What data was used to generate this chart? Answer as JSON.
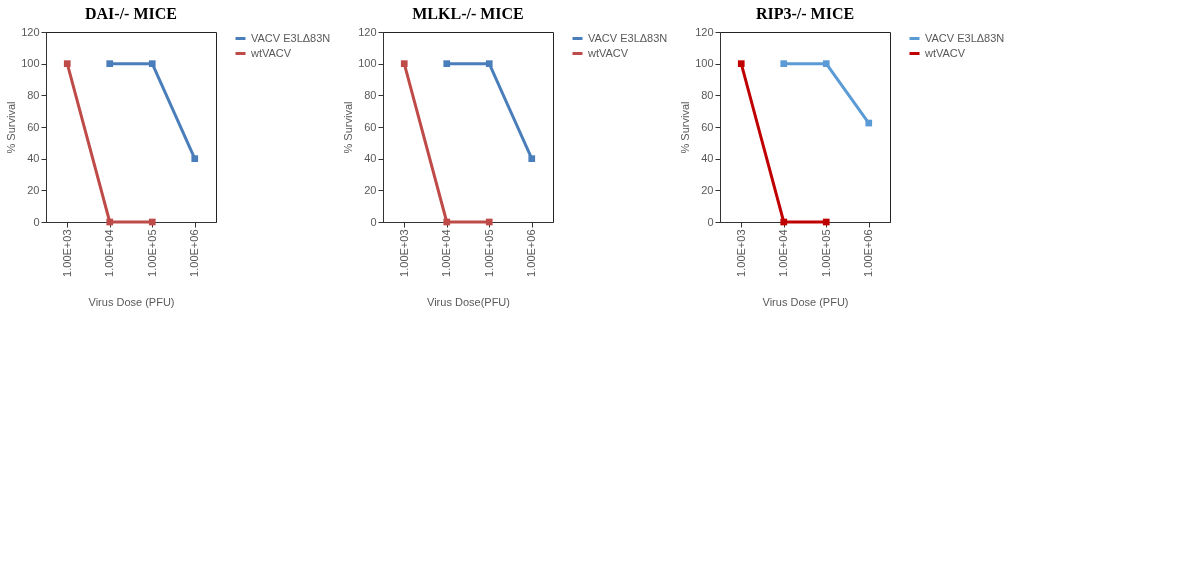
{
  "chart_data": [
    {
      "type": "line",
      "title": "DAI-/- MICE",
      "xlabel": "Virus Dose (PFU)",
      "ylabel": "% Survival",
      "categories": [
        "1.00E+03",
        "1.00E+04",
        "1.00E+05",
        "1.00E+06"
      ],
      "ylim": [
        0,
        120
      ],
      "yticks": [
        0,
        20,
        40,
        60,
        80,
        100,
        120
      ],
      "grid": false,
      "legend": "right",
      "marker": "square",
      "line_style": "solid",
      "series": [
        {
          "name": "VACV E3LΔ83N",
          "color": "#4a7ebb",
          "values": [
            null,
            100,
            100,
            40
          ]
        },
        {
          "name": "wtVACV",
          "color": "#be4b48",
          "values": [
            100,
            0,
            0,
            null
          ]
        }
      ]
    },
    {
      "type": "line",
      "title": "MLKL-/- MICE",
      "xlabel": "Virus Dose(PFU)",
      "ylabel": "% Survival",
      "categories": [
        "1.00E+03",
        "1.00E+04",
        "1.00E+05",
        "1.00E+06"
      ],
      "ylim": [
        0,
        120
      ],
      "yticks": [
        0,
        20,
        40,
        60,
        80,
        100,
        120
      ],
      "grid": false,
      "legend": "right",
      "marker": "square",
      "line_style": "solid",
      "series": [
        {
          "name": "VACV E3LΔ83N",
          "color": "#4a7ebb",
          "values": [
            null,
            100,
            100,
            40
          ]
        },
        {
          "name": "wtVACV",
          "color": "#be4b48",
          "values": [
            100,
            0,
            0,
            null
          ]
        }
      ]
    },
    {
      "type": "line",
      "title": "RIP3-/- MICE",
      "xlabel": "Virus Dose (PFU)",
      "ylabel": "% Survival",
      "categories": [
        "1.00E+03",
        "1.00E+04",
        "1.00E+05",
        "1.00E+06"
      ],
      "ylim": [
        0,
        120
      ],
      "yticks": [
        0,
        20,
        40,
        60,
        80,
        100,
        120
      ],
      "grid": false,
      "legend": "right",
      "marker": "square",
      "line_style": "solid",
      "series": [
        {
          "name": "VACV E3LΔ83N",
          "color": "#5b9bd5",
          "values": [
            null,
            100,
            100,
            62.5
          ]
        },
        {
          "name": "wtVACV",
          "color": "#c00000",
          "values": [
            100,
            0,
            0,
            null
          ]
        }
      ]
    }
  ]
}
